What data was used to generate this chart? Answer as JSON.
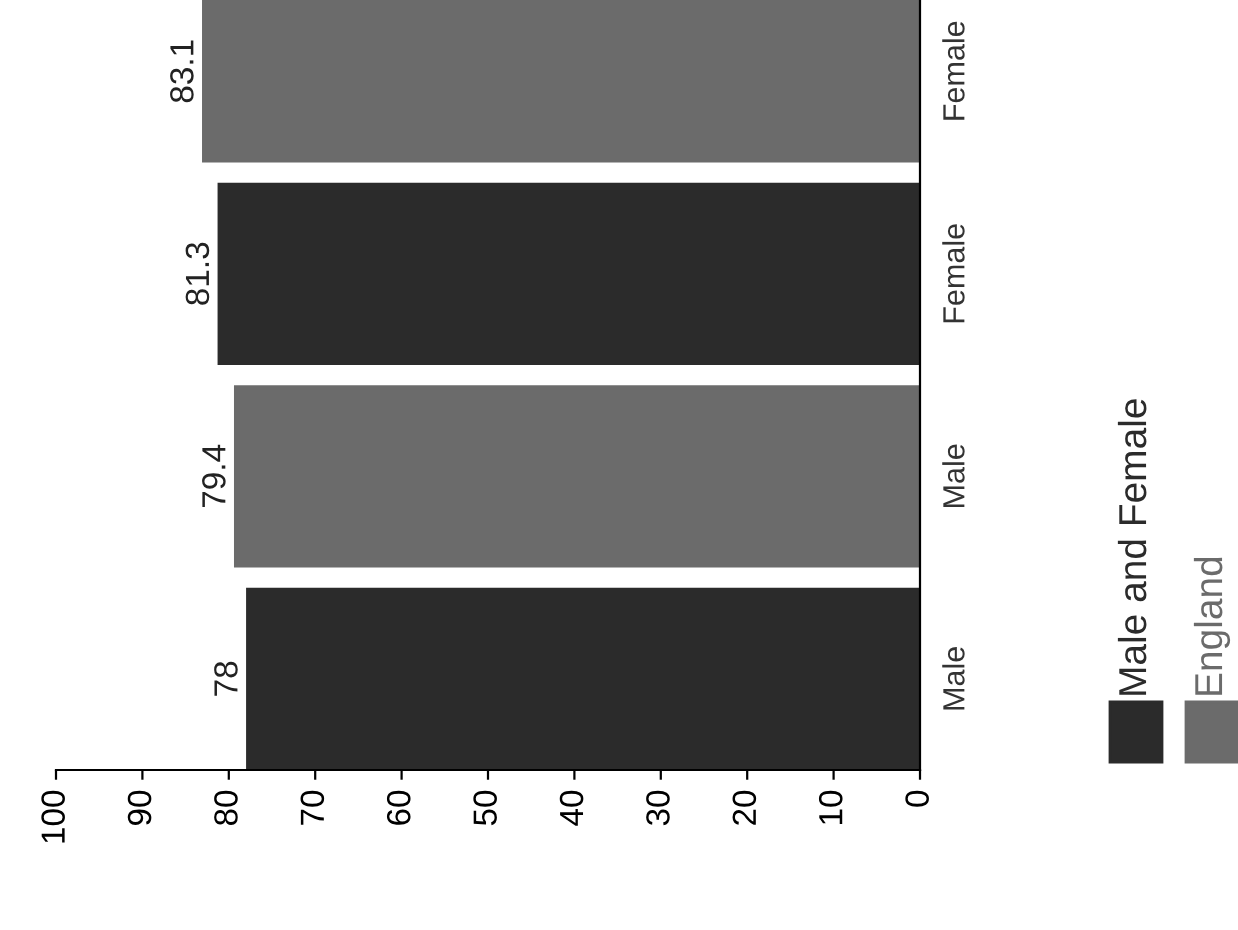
{
  "chart_data": {
    "type": "bar",
    "orientation": "horizontal",
    "categories": [
      "Female",
      "Female",
      "Male",
      "Male"
    ],
    "series": [
      {
        "name": "Male and Female",
        "color": "#2b2b2b",
        "values": [
          null,
          81.3,
          null,
          78
        ]
      },
      {
        "name": "England",
        "color": "#6b6b6b",
        "values": [
          83.1,
          null,
          79.4,
          null
        ]
      }
    ],
    "xlim": [
      100,
      0
    ],
    "xticks": [
      0,
      10,
      20,
      30,
      40,
      50,
      60,
      70,
      80,
      90,
      100
    ],
    "data_labels": true,
    "legend": "bottom right",
    "grid": false
  }
}
